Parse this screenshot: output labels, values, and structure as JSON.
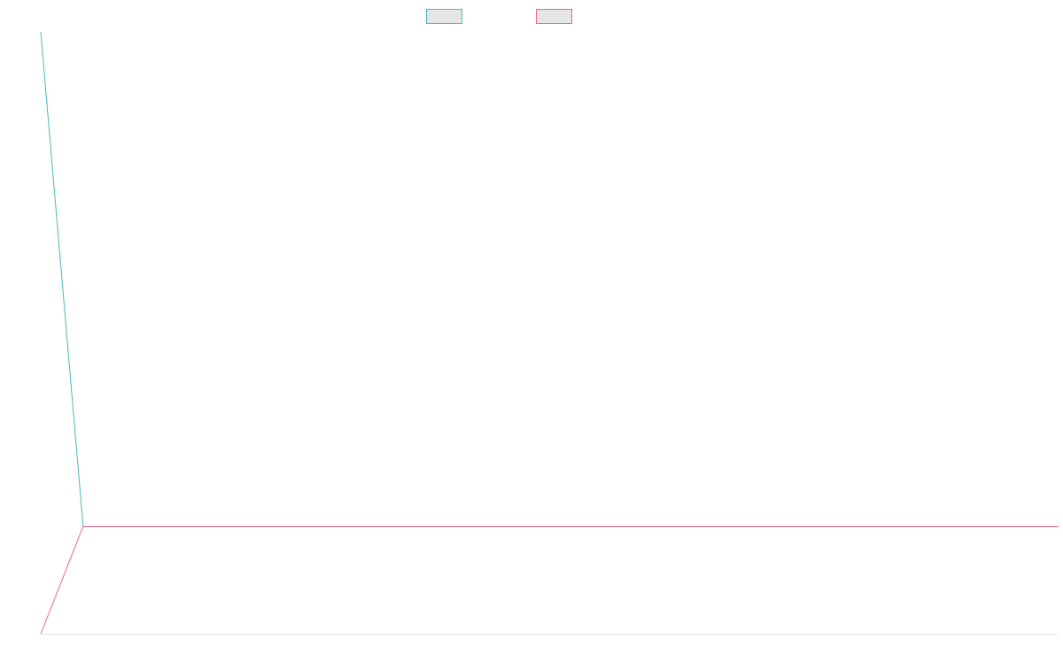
{
  "colors": {
    "background": "#ffffff",
    "axis": "#e5e5e5",
    "legend_fill": "#e6e6e6"
  },
  "chart_data": {
    "type": "line",
    "x": [
      "",
      "",
      "",
      "",
      "",
      "",
      "",
      "",
      "",
      "",
      "",
      "",
      "",
      "",
      "",
      "",
      "",
      "",
      "",
      "",
      "",
      "",
      "",
      "",
      ""
    ],
    "ylim": [
      -100,
      460
    ],
    "grid": false,
    "legend_position": "top-center",
    "series": [
      {
        "color": "#4bb8c0",
        "values": [
          460,
          0,
          0,
          0,
          0,
          0,
          0,
          0,
          0,
          0,
          0,
          0,
          0,
          0,
          0,
          0,
          0,
          0,
          0,
          0,
          0,
          0,
          0,
          0,
          0
        ]
      },
      {
        "color": "#f0648c",
        "values": [
          -100,
          0,
          0,
          0,
          0,
          0,
          0,
          0,
          0,
          0,
          0,
          0,
          0,
          0,
          0,
          0,
          0,
          0,
          0,
          0,
          0,
          0,
          0,
          0,
          0
        ]
      }
    ]
  }
}
